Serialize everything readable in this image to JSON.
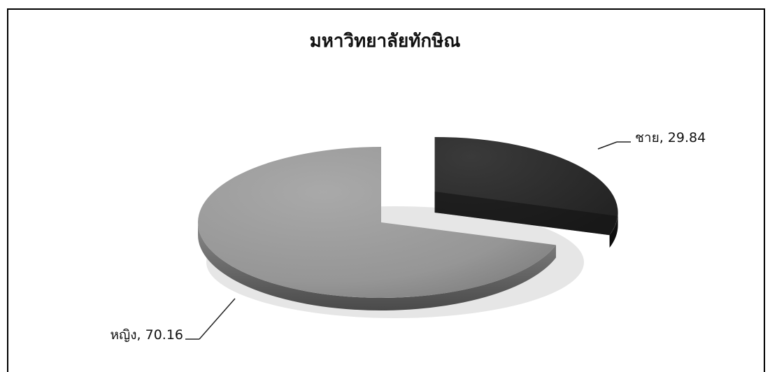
{
  "chart_data": {
    "type": "pie",
    "title": "มหาวิทยาลัยทักษิณ",
    "slices": [
      {
        "label": "ชาย",
        "value": 29.84,
        "color": "#2b2b2b",
        "exploded": true
      },
      {
        "label": "หญิง",
        "value": 70.16,
        "color": "#9a9a9a",
        "exploded": false
      }
    ],
    "data_labels": [
      "ชาย, 29.84",
      "หญิง, 70.16"
    ],
    "legend": "none",
    "style": "3d-exploded"
  }
}
